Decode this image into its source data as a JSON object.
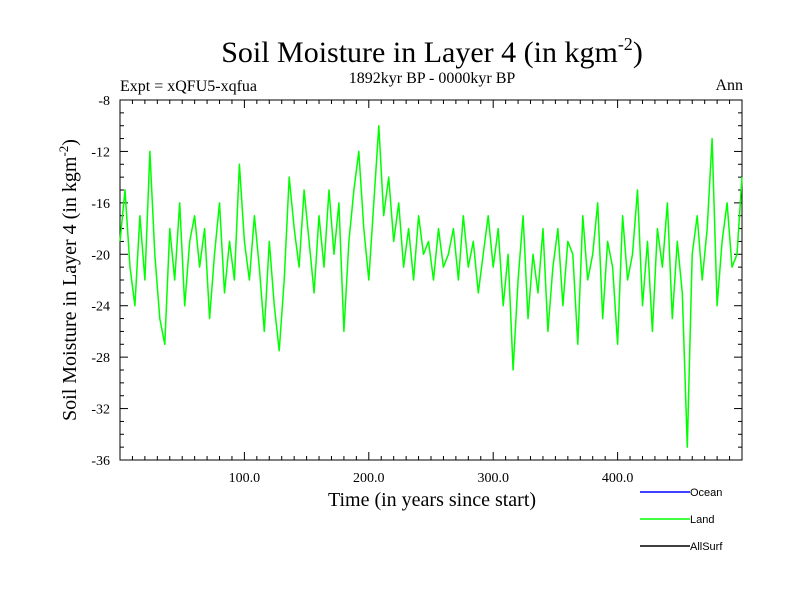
{
  "chart_data": {
    "type": "line",
    "title_main": "Soil Moisture in Layer 4 (in kgm",
    "title_sup": "-2",
    "title_close": ")",
    "subtitle_left": "Expt = xQFU5-xqfua",
    "subtitle_center": "1892kyr BP - 0000kyr BP",
    "subtitle_right": "Ann",
    "xlabel": "Time (in years since start)",
    "ylabel_main": "Soil Moisture in Layer 4 (in kgm",
    "ylabel_sup": "-2",
    "ylabel_close": ")",
    "xlim": [
      0,
      500
    ],
    "ylim": [
      -36,
      -8
    ],
    "x_ticks": [
      100,
      200,
      300,
      400
    ],
    "x_tick_labels": [
      "100.0",
      "200.0",
      "300.0",
      "400.0"
    ],
    "y_ticks": [
      -36,
      -32,
      -28,
      -24,
      -20,
      -16,
      -12,
      -8
    ],
    "y_tick_labels": [
      "-36",
      "-32",
      "-28",
      "-24",
      "-20",
      "-16",
      "-12",
      "-8"
    ],
    "legend": [
      {
        "name": "Ocean",
        "color": "#0000ff"
      },
      {
        "name": "Land",
        "color": "#00ff00"
      },
      {
        "name": "AllSurf",
        "color": "#000000"
      }
    ],
    "series": [
      {
        "name": "Land",
        "color": "#00ff00",
        "x": [
          0,
          4,
          8,
          12,
          16,
          20,
          24,
          28,
          32,
          36,
          40,
          44,
          48,
          52,
          56,
          60,
          64,
          68,
          72,
          76,
          80,
          84,
          88,
          92,
          96,
          100,
          104,
          108,
          112,
          116,
          120,
          124,
          128,
          132,
          136,
          140,
          144,
          148,
          152,
          156,
          160,
          164,
          168,
          172,
          176,
          180,
          184,
          188,
          192,
          196,
          200,
          204,
          208,
          212,
          216,
          220,
          224,
          228,
          232,
          236,
          240,
          244,
          248,
          252,
          256,
          260,
          264,
          268,
          272,
          276,
          280,
          284,
          288,
          292,
          296,
          300,
          304,
          308,
          312,
          316,
          320,
          324,
          328,
          332,
          336,
          340,
          344,
          348,
          352,
          356,
          360,
          364,
          368,
          372,
          376,
          380,
          384,
          388,
          392,
          396,
          400,
          404,
          408,
          412,
          416,
          420,
          424,
          428,
          432,
          436,
          440,
          444,
          448,
          452,
          456,
          460,
          464,
          468,
          472,
          476,
          480,
          484,
          488,
          492,
          496,
          500
        ],
        "values": [
          -19,
          -15,
          -21,
          -24,
          -17,
          -22,
          -12,
          -20,
          -25,
          -27,
          -18,
          -22,
          -16,
          -24,
          -19,
          -17,
          -21,
          -18,
          -25,
          -20,
          -16,
          -23,
          -19,
          -22,
          -13,
          -19,
          -22,
          -17,
          -21,
          -26,
          -19,
          -24,
          -27.5,
          -22,
          -14,
          -18,
          -21,
          -15,
          -19,
          -23,
          -17,
          -21,
          -15,
          -20,
          -16,
          -26,
          -19,
          -15,
          -12,
          -18,
          -22,
          -16,
          -10,
          -17,
          -14,
          -19,
          -16,
          -21,
          -18,
          -22,
          -17,
          -20,
          -19,
          -22,
          -18,
          -21,
          -20,
          -18,
          -22,
          -17,
          -21,
          -19,
          -23,
          -20,
          -17,
          -21,
          -18,
          -24,
          -20,
          -29,
          -22,
          -17,
          -25,
          -20,
          -23,
          -18,
          -26,
          -21,
          -18,
          -24,
          -19,
          -20,
          -27,
          -17,
          -22,
          -20,
          -16,
          -25,
          -19,
          -21,
          -27,
          -17,
          -22,
          -20,
          -15,
          -24,
          -19,
          -26,
          -18,
          -21,
          -16,
          -25,
          -19,
          -23,
          -35,
          -20,
          -17,
          -22,
          -18,
          -11,
          -24,
          -19,
          -16,
          -21,
          -20,
          -14
        ]
      },
      {
        "name": "Ocean",
        "color": "#0000ff",
        "x": [],
        "values": []
      },
      {
        "name": "AllSurf",
        "color": "#000000",
        "x": [],
        "values": []
      }
    ]
  }
}
